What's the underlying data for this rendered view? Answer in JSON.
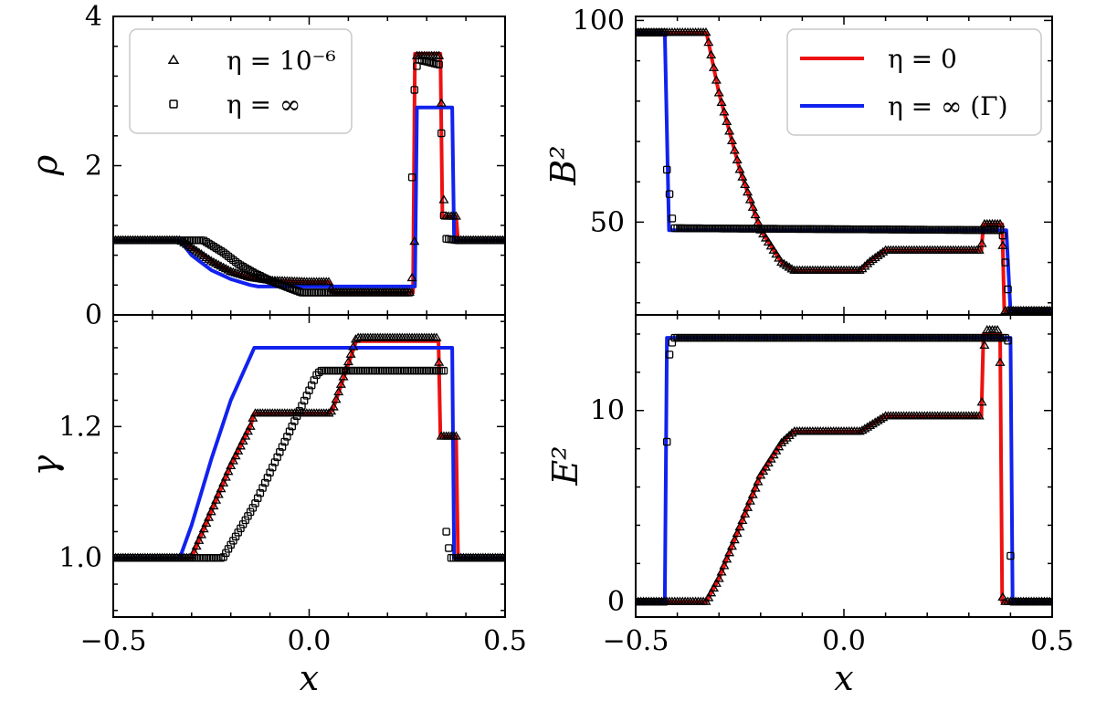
{
  "chart_data": [
    {
      "id": "rho",
      "type": "line",
      "ylabel": "ρ",
      "xlabel": "",
      "xlim": [
        -0.5,
        0.5
      ],
      "ylim": [
        0,
        4
      ],
      "yticks": [
        0,
        2,
        4
      ],
      "yticklabels": [
        "0",
        "2",
        "4"
      ],
      "legend": {
        "placement": "top-left",
        "entries": [
          {
            "kind": "tri",
            "label": "η = 10⁻⁶"
          },
          {
            "kind": "sq",
            "label": "η = ∞"
          }
        ]
      },
      "series": [
        {
          "name": "η = 0",
          "color": "#ee1111",
          "kind": "line",
          "points": [
            [
              -0.5,
              1.0
            ],
            [
              -0.33,
              1.0
            ],
            [
              -0.3,
              0.9
            ],
            [
              -0.25,
              0.72
            ],
            [
              -0.2,
              0.58
            ],
            [
              -0.15,
              0.5
            ],
            [
              -0.1,
              0.46
            ],
            [
              0.0,
              0.44
            ],
            [
              0.05,
              0.44
            ],
            [
              0.06,
              0.3
            ],
            [
              0.265,
              0.3
            ],
            [
              0.27,
              3.5
            ],
            [
              0.335,
              3.5
            ],
            [
              0.34,
              1.32
            ],
            [
              0.375,
              1.32
            ],
            [
              0.38,
              1.0
            ],
            [
              0.5,
              1.0
            ]
          ]
        },
        {
          "name": "η = ∞ (Γ)",
          "color": "#1122ee",
          "kind": "line",
          "points": [
            [
              -0.5,
              1.0
            ],
            [
              -0.33,
              1.0
            ],
            [
              -0.3,
              0.8
            ],
            [
              -0.25,
              0.6
            ],
            [
              -0.2,
              0.48
            ],
            [
              -0.15,
              0.4
            ],
            [
              -0.13,
              0.38
            ],
            [
              0.27,
              0.38
            ],
            [
              0.275,
              2.78
            ],
            [
              0.365,
              2.78
            ],
            [
              0.37,
              1.0
            ],
            [
              0.5,
              1.0
            ]
          ]
        },
        {
          "name": "η = 10⁻⁶",
          "color": "#000000",
          "kind": "tri",
          "points": [
            [
              -0.5,
              1.0
            ],
            [
              -0.33,
              1.0
            ],
            [
              -0.3,
              0.9
            ],
            [
              -0.25,
              0.72
            ],
            [
              -0.2,
              0.58
            ],
            [
              -0.15,
              0.5
            ],
            [
              -0.1,
              0.46
            ],
            [
              0.0,
              0.44
            ],
            [
              0.05,
              0.44
            ],
            [
              0.06,
              0.3
            ],
            [
              0.26,
              0.3
            ],
            [
              0.27,
              1.08
            ],
            [
              0.275,
              3.47
            ],
            [
              0.335,
              3.47
            ],
            [
              0.34,
              2.2
            ],
            [
              0.345,
              1.32
            ],
            [
              0.375,
              1.32
            ],
            [
              0.38,
              1.0
            ],
            [
              0.5,
              1.0
            ]
          ]
        },
        {
          "name": "η = ∞",
          "color": "#000000",
          "kind": "sq",
          "points": [
            [
              -0.5,
              1.0
            ],
            [
              -0.27,
              1.0
            ],
            [
              -0.22,
              0.84
            ],
            [
              -0.18,
              0.68
            ],
            [
              -0.14,
              0.56
            ],
            [
              -0.1,
              0.46
            ],
            [
              -0.05,
              0.36
            ],
            [
              -0.02,
              0.3
            ],
            [
              0.26,
              0.3
            ],
            [
              0.262,
              1.75
            ],
            [
              0.27,
              3.25
            ],
            [
              0.28,
              3.42
            ],
            [
              0.335,
              3.35
            ],
            [
              0.34,
              1.52
            ],
            [
              0.35,
              1.02
            ],
            [
              0.38,
              1.0
            ],
            [
              0.5,
              1.0
            ]
          ]
        }
      ]
    },
    {
      "id": "gamma",
      "type": "line",
      "ylabel": "γ",
      "xlabel": "x",
      "xlim": [
        -0.5,
        0.5
      ],
      "ylim": [
        0.91,
        1.37
      ],
      "yticks": [
        1.0,
        1.2
      ],
      "yticklabels": [
        "1.0",
        "1.2"
      ],
      "xticks": [
        -0.5,
        0.0,
        0.5
      ],
      "xticklabels": [
        "−0.5",
        "0.0",
        "0.5"
      ],
      "series": [
        {
          "name": "η = 0",
          "color": "#ee1111",
          "kind": "line",
          "points": [
            [
              -0.5,
              1.0
            ],
            [
              -0.3,
              1.0
            ],
            [
              -0.25,
              1.07
            ],
            [
              -0.2,
              1.14
            ],
            [
              -0.15,
              1.2
            ],
            [
              -0.14,
              1.22
            ],
            [
              0.05,
              1.22
            ],
            [
              0.06,
              1.225
            ],
            [
              0.12,
              1.33
            ],
            [
              0.33,
              1.33
            ],
            [
              0.335,
              1.185
            ],
            [
              0.375,
              1.185
            ],
            [
              0.38,
              1.0
            ],
            [
              0.5,
              1.0
            ]
          ]
        },
        {
          "name": "η = ∞ (Γ)",
          "color": "#1122ee",
          "kind": "line",
          "points": [
            [
              -0.5,
              1.0
            ],
            [
              -0.33,
              1.0
            ],
            [
              -0.3,
              1.05
            ],
            [
              -0.25,
              1.15
            ],
            [
              -0.2,
              1.24
            ],
            [
              -0.14,
              1.32
            ],
            [
              0.365,
              1.32
            ],
            [
              0.37,
              1.0
            ],
            [
              0.5,
              1.0
            ]
          ]
        },
        {
          "name": "η = 10⁻⁶",
          "color": "#000000",
          "kind": "tri",
          "points": [
            [
              -0.5,
              1.0
            ],
            [
              -0.3,
              1.0
            ],
            [
              -0.25,
              1.07
            ],
            [
              -0.2,
              1.14
            ],
            [
              -0.15,
              1.2
            ],
            [
              -0.14,
              1.22
            ],
            [
              0.05,
              1.22
            ],
            [
              0.06,
              1.225
            ],
            [
              0.12,
              1.335
            ],
            [
              0.33,
              1.335
            ],
            [
              0.335,
              1.185
            ],
            [
              0.375,
              1.185
            ],
            [
              0.38,
              1.0
            ],
            [
              0.5,
              1.0
            ]
          ]
        },
        {
          "name": "η = ∞",
          "color": "#000000",
          "kind": "sq",
          "points": [
            [
              -0.5,
              1.0
            ],
            [
              -0.22,
              1.0
            ],
            [
              -0.18,
              1.04
            ],
            [
              -0.14,
              1.08
            ],
            [
              -0.1,
              1.13
            ],
            [
              -0.06,
              1.18
            ],
            [
              -0.02,
              1.23
            ],
            [
              0.02,
              1.28
            ],
            [
              0.03,
              1.285
            ],
            [
              0.26,
              1.285
            ],
            [
              0.345,
              1.285
            ],
            [
              0.35,
              1.04
            ],
            [
              0.36,
              1.0
            ],
            [
              0.5,
              1.0
            ]
          ]
        }
      ]
    },
    {
      "id": "B2",
      "type": "line",
      "ylabel": "B²",
      "xlabel": "",
      "xlim": [
        -0.5,
        0.5
      ],
      "ylim": [
        27,
        101
      ],
      "yticks": [
        50,
        100
      ],
      "yticklabels": [
        "50",
        "100"
      ],
      "legend": {
        "placement": "top-right",
        "entries": [
          {
            "kind": "line",
            "color": "#ee1111",
            "label": "η = 0"
          },
          {
            "kind": "line",
            "color": "#1122ee",
            "label": "η = ∞ (Γ)"
          }
        ]
      },
      "series": [
        {
          "name": "η = 0",
          "color": "#ee1111",
          "kind": "line",
          "points": [
            [
              -0.5,
              97
            ],
            [
              -0.33,
              97
            ],
            [
              -0.3,
              82
            ],
            [
              -0.25,
              63
            ],
            [
              -0.2,
              48
            ],
            [
              -0.15,
              40
            ],
            [
              -0.12,
              38
            ],
            [
              0.04,
              38
            ],
            [
              0.06,
              40
            ],
            [
              0.1,
              43
            ],
            [
              0.33,
              43
            ],
            [
              0.335,
              49.5
            ],
            [
              0.38,
              49.5
            ],
            [
              0.385,
              28
            ],
            [
              0.5,
              28
            ]
          ]
        },
        {
          "name": "η = ∞ (Γ)",
          "color": "#1122ee",
          "kind": "line",
          "points": [
            [
              -0.5,
              97
            ],
            [
              -0.43,
              97
            ],
            [
              -0.42,
              48
            ],
            [
              0.39,
              48
            ],
            [
              0.4,
              28
            ],
            [
              0.5,
              28
            ]
          ]
        },
        {
          "name": "η = 10⁻⁶",
          "color": "#000000",
          "kind": "tri",
          "points": [
            [
              -0.5,
              97
            ],
            [
              -0.33,
              97
            ],
            [
              -0.3,
              82
            ],
            [
              -0.25,
              63
            ],
            [
              -0.2,
              48
            ],
            [
              -0.15,
              40
            ],
            [
              -0.12,
              38
            ],
            [
              0.04,
              38
            ],
            [
              0.06,
              40
            ],
            [
              0.1,
              43
            ],
            [
              0.33,
              43
            ],
            [
              0.335,
              49.5
            ],
            [
              0.38,
              49.5
            ],
            [
              0.385,
              28
            ],
            [
              0.5,
              28
            ]
          ]
        },
        {
          "name": "η = ∞",
          "color": "#000000",
          "kind": "sq",
          "points": [
            [
              -0.5,
              97
            ],
            [
              -0.43,
              97
            ],
            [
              -0.425,
              63
            ],
            [
              -0.41,
              48.5
            ],
            [
              0.38,
              48
            ],
            [
              0.395,
              32
            ],
            [
              0.4,
              28
            ],
            [
              0.5,
              28
            ]
          ]
        }
      ]
    },
    {
      "id": "E2",
      "type": "line",
      "ylabel": "E²",
      "xlabel": "x",
      "xlim": [
        -0.5,
        0.5
      ],
      "ylim": [
        -0.8,
        15
      ],
      "yticks": [
        0,
        10
      ],
      "yticklabels": [
        "0",
        "10"
      ],
      "xticks": [
        -0.5,
        0.0,
        0.5
      ],
      "xticklabels": [
        "−0.5",
        "0.0",
        "0.5"
      ],
      "series": [
        {
          "name": "η = 0",
          "color": "#ee1111",
          "kind": "line",
          "points": [
            [
              -0.5,
              0
            ],
            [
              -0.33,
              0
            ],
            [
              -0.3,
              1.2
            ],
            [
              -0.25,
              3.9
            ],
            [
              -0.2,
              6.6
            ],
            [
              -0.15,
              8.3
            ],
            [
              -0.12,
              8.9
            ],
            [
              0.04,
              8.9
            ],
            [
              0.1,
              9.7
            ],
            [
              0.33,
              9.7
            ],
            [
              0.335,
              14.0
            ],
            [
              0.375,
              14.0
            ],
            [
              0.38,
              0
            ],
            [
              0.5,
              0
            ]
          ]
        },
        {
          "name": "η = ∞ (Γ)",
          "color": "#1122ee",
          "kind": "line",
          "points": [
            [
              -0.5,
              0
            ],
            [
              -0.43,
              0
            ],
            [
              -0.425,
              13.8
            ],
            [
              0.4,
              13.8
            ],
            [
              0.405,
              0
            ],
            [
              0.5,
              0
            ]
          ]
        },
        {
          "name": "η = 10⁻⁶",
          "color": "#000000",
          "kind": "tri",
          "points": [
            [
              -0.5,
              0
            ],
            [
              -0.33,
              0
            ],
            [
              -0.3,
              1.2
            ],
            [
              -0.25,
              3.9
            ],
            [
              -0.2,
              6.6
            ],
            [
              -0.15,
              8.3
            ],
            [
              -0.12,
              8.9
            ],
            [
              0.04,
              8.9
            ],
            [
              0.1,
              9.7
            ],
            [
              0.33,
              9.7
            ],
            [
              0.335,
              12.6
            ],
            [
              0.34,
              14.2
            ],
            [
              0.37,
              14.2
            ],
            [
              0.375,
              12.5
            ],
            [
              0.38,
              0.3
            ],
            [
              0.385,
              0
            ],
            [
              0.5,
              0
            ]
          ]
        },
        {
          "name": "η = ∞",
          "color": "#000000",
          "kind": "sq",
          "points": [
            [
              -0.5,
              0
            ],
            [
              -0.43,
              0
            ],
            [
              -0.428,
              5.7
            ],
            [
              -0.42,
              12.8
            ],
            [
              -0.41,
              13.8
            ],
            [
              0.39,
              13.8
            ],
            [
              0.395,
              13.6
            ],
            [
              0.4,
              2.4
            ],
            [
              0.405,
              0
            ],
            [
              0.5,
              0
            ]
          ]
        }
      ]
    }
  ]
}
